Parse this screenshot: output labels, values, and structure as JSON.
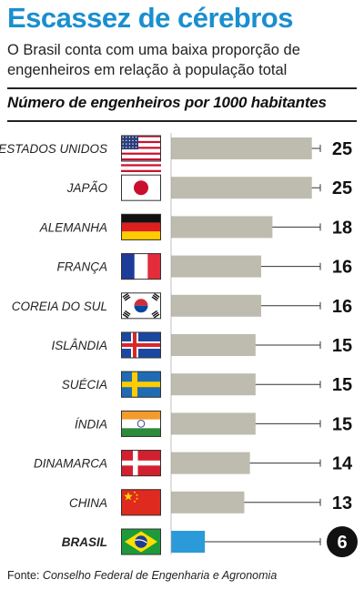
{
  "header": {
    "title": "Escassez de cérebros",
    "subtitle": "O Brasil conta com uma baixa proporção de engenheiros em relação à população total",
    "chart_heading": "Número de engenheiros por 1000 habitantes"
  },
  "footer": {
    "source_label": "Fonte:",
    "source_text": "Conselho Federal de Engenharia e Agronomia"
  },
  "colors": {
    "title": "#1a8fcf",
    "bar": "#bdbcaf",
    "highlight_bar": "#2b9ad8",
    "highlight_badge": "#111111"
  },
  "chart_data": {
    "type": "bar",
    "orientation": "horizontal",
    "title": "Número de engenheiros por 1000 habitantes",
    "categories": [
      "ESTADOS UNIDOS",
      "JAPÃO",
      "ALEMANHA",
      "FRANÇA",
      "COREIA DO SUL",
      "ISLÂNDIA",
      "SUÉCIA",
      "ÍNDIA",
      "DINAMARCA",
      "CHINA",
      "BRASIL"
    ],
    "values": [
      25,
      25,
      18,
      16,
      16,
      15,
      15,
      15,
      14,
      13,
      6
    ],
    "flags": [
      "us-flag-icon",
      "japan-flag-icon",
      "germany-flag-icon",
      "france-flag-icon",
      "south-korea-flag-icon",
      "iceland-flag-icon",
      "sweden-flag-icon",
      "india-flag-icon",
      "denmark-flag-icon",
      "china-flag-icon",
      "brazil-flag-icon"
    ],
    "highlight": "BRASIL",
    "xlim": [
      0,
      26.5
    ],
    "grid": false,
    "legend": "none"
  }
}
